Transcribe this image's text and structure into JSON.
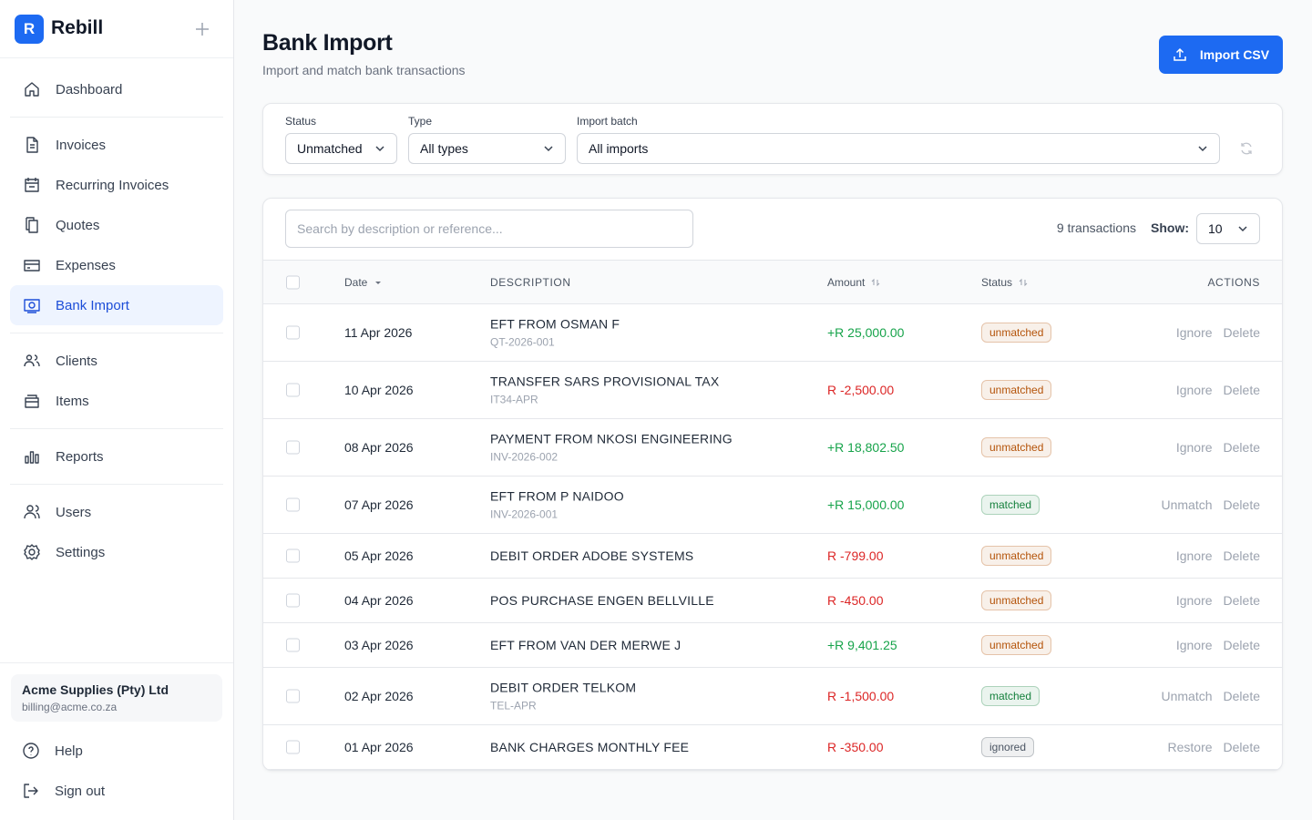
{
  "sidebar": {
    "brand_initial": "R",
    "brand": "Rebill",
    "nav": [
      [
        "Dashboard"
      ],
      [
        "Invoices",
        "Recurring Invoices",
        "Quotes",
        "Expenses",
        "Bank Import"
      ],
      [
        "Clients",
        "Items"
      ],
      [
        "Reports"
      ],
      [
        "Users",
        "Settings"
      ]
    ],
    "active": "Bank Import",
    "account": {
      "name": "Acme Supplies (Pty) Ltd",
      "email": "billing@acme.co.za"
    },
    "footer": [
      "Help",
      "Sign out"
    ]
  },
  "header": {
    "title": "Bank Import",
    "subtitle": "Import and match bank transactions",
    "button": "Import CSV"
  },
  "filters": [
    {
      "label": "Status",
      "value": "Unmatched"
    },
    {
      "label": "Type",
      "value": "All types"
    },
    {
      "label": "Import batch",
      "value": "All imports"
    }
  ],
  "toolbar": {
    "search_placeholder": "Search by description or reference...",
    "count": "9 transactions",
    "show_label": "Show:",
    "show_value": "10"
  },
  "columns": [
    "Date",
    "DESCRIPTION",
    "Amount",
    "Status",
    "ACTIONS"
  ],
  "rows": [
    {
      "date": "11 Apr 2026",
      "description": "EFT FROM OSMAN F",
      "reference": "QT-2026-001",
      "amount": "+R 25,000.00",
      "amount_color": "#16a34a",
      "status": "unmatched",
      "status_color": "#b45309",
      "actions": [
        "Ignore",
        "Delete"
      ]
    },
    {
      "date": "10 Apr 2026",
      "description": "TRANSFER SARS PROVISIONAL TAX",
      "reference": "IT34-APR",
      "amount": "R -2,500.00",
      "amount_color": "#dc2626",
      "status": "unmatched",
      "status_color": "#b45309",
      "actions": [
        "Ignore",
        "Delete"
      ]
    },
    {
      "date": "08 Apr 2026",
      "description": "PAYMENT FROM NKOSI ENGINEERING",
      "reference": "INV-2026-002",
      "amount": "+R 18,802.50",
      "amount_color": "#16a34a",
      "status": "unmatched",
      "status_color": "#b45309",
      "actions": [
        "Ignore",
        "Delete"
      ]
    },
    {
      "date": "07 Apr 2026",
      "description": "EFT FROM P NAIDOO",
      "reference": "INV-2026-001",
      "amount": "+R 15,000.00",
      "amount_color": "#16a34a",
      "status": "matched",
      "status_color": "#15803d",
      "actions": [
        "Unmatch",
        "Delete"
      ]
    },
    {
      "date": "05 Apr 2026",
      "description": "DEBIT ORDER ADOBE SYSTEMS",
      "amount": "R -799.00",
      "amount_color": "#dc2626",
      "status": "unmatched",
      "status_color": "#b45309",
      "actions": [
        "Ignore",
        "Delete"
      ]
    },
    {
      "date": "04 Apr 2026",
      "description": "POS PURCHASE ENGEN BELLVILLE",
      "amount": "R -450.00",
      "amount_color": "#dc2626",
      "status": "unmatched",
      "status_color": "#b45309",
      "actions": [
        "Ignore",
        "Delete"
      ]
    },
    {
      "date": "03 Apr 2026",
      "description": "EFT FROM VAN DER MERWE J",
      "amount": "+R 9,401.25",
      "amount_color": "#16a34a",
      "status": "unmatched",
      "status_color": "#b45309",
      "actions": [
        "Ignore",
        "Delete"
      ]
    },
    {
      "date": "02 Apr 2026",
      "description": "DEBIT ORDER TELKOM",
      "reference": "TEL-APR",
      "amount": "R -1,500.00",
      "amount_color": "#dc2626",
      "status": "matched",
      "status_color": "#15803d",
      "actions": [
        "Unmatch",
        "Delete"
      ]
    },
    {
      "date": "01 Apr 2026",
      "description": "BANK CHARGES MONTHLY FEE",
      "amount": "R -350.00",
      "amount_color": "#dc2626",
      "status": "ignored",
      "status_color": "#4b5563",
      "actions": [
        "Restore",
        "Delete"
      ]
    }
  ]
}
